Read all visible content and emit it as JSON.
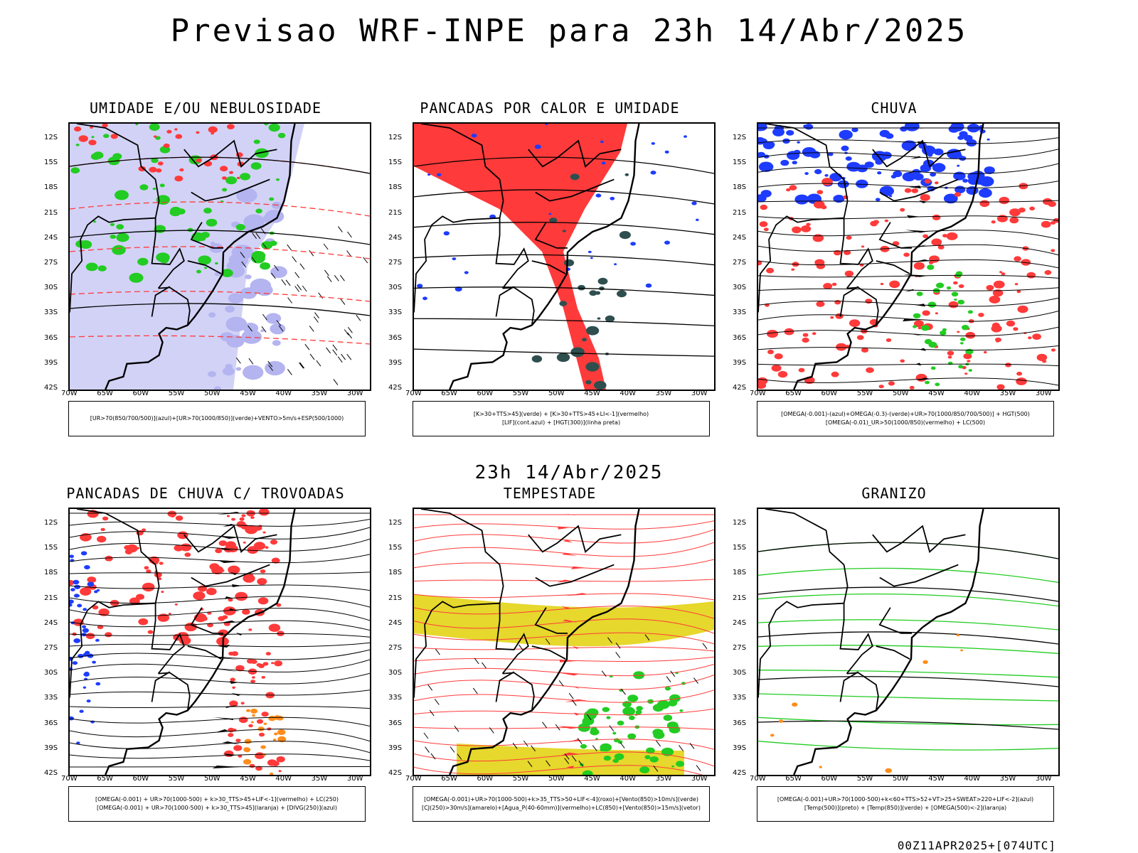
{
  "title": "Previsao WRF-INPE  para 23h 14/Abr/2025",
  "subtitle": "23h 14/Abr/2025",
  "footer": "00Z11APR2025+[074UTC]",
  "axes": {
    "lat_labels": [
      "12S",
      "15S",
      "18S",
      "21S",
      "24S",
      "27S",
      "30S",
      "33S",
      "36S",
      "39S",
      "42S"
    ],
    "lon_labels": [
      "70W",
      "65W",
      "60W",
      "55W",
      "50W",
      "45W",
      "40W",
      "35W",
      "30W"
    ]
  },
  "panels": [
    {
      "title": "UMIDADE E/OU NEBULOSIDADE",
      "legend": [
        "[UR>70(850/700/500)](azul)+[UR>70(1000/850)](verde)+VENTO>5m/s+ESP(500/1000)"
      ]
    },
    {
      "title": "PANCADAS POR CALOR E UMIDADE",
      "legend": [
        "[K>30+TTS>45](verde) + [K>30+TTS>45+LI<-1](vermelho)",
        "[LIF](cont.azul) + [HGT(300)](linha preta)"
      ]
    },
    {
      "title": "CHUVA",
      "legend": [
        "[OMEGA(-0.001)-(azul)+OMEGA(-0.3)-(verde)+UR>70(1000/850/700/500)] + HGT(500)",
        "[OMEGA(-0.01)_UR>50(1000/850)(vermelho) + LC(500)"
      ]
    },
    {
      "title": "PANCADAS DE CHUVA C/ TROVOADAS",
      "legend": [
        "[OMEGA(-0.001) + UR>70(1000-500) + k>30_TTS>45+LIF<-1](vermelho) + LC(250)",
        "[OMEGA(-0.001) + UR>70(1000-500) + k>30_TTS>45](laranja) + [DIVG(250)](azul)"
      ]
    },
    {
      "title": "TEMPESTADE",
      "legend": [
        "[OMEGA(-0.001)+UR>70(1000-500)+k>35_TTS>50+LIF<-4](roxo)+[Vento(850)>10m/s](verde)",
        "[CJ(250)>30m/s](amarelo)+[Agua_P(40-60mm)](vermelho)+LC(850)+[Vento(850)>15m/s](vetor)"
      ]
    },
    {
      "title": "GRANIZO",
      "legend": [
        "[OMEGA(-0.001)+UR>70(1000-500)+k<60+TTS>52+VT>25+SWEAT>220+LIF<-2](azul)",
        "[Temp(500)](preto) + [Temp(850)](verde) + [OMEGA(500)<-2](laranja)"
      ]
    }
  ],
  "colors": {
    "blue": "#1e3cff",
    "green": "#22cc22",
    "red": "#ff3a3a",
    "orange": "#ff8c1a",
    "lavender": "#b4b4f0",
    "yellow": "#e6d82c",
    "darkteal": "#2f4f4f"
  }
}
